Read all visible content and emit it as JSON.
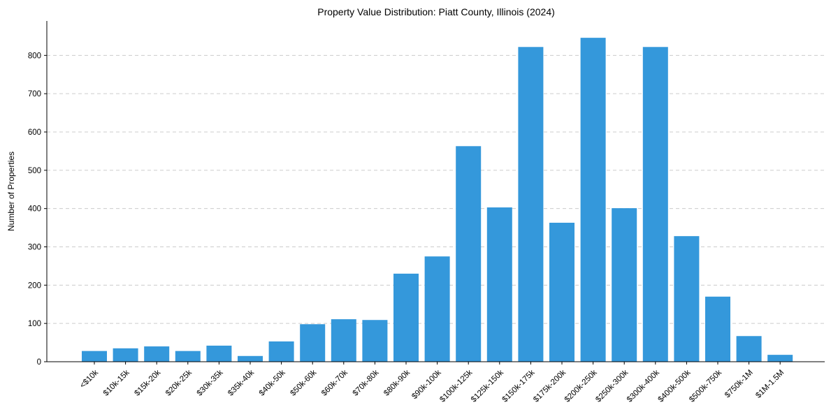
{
  "chart_data": {
    "type": "bar",
    "title": "Property Value Distribution: Piatt County, Illinois (2024)",
    "xlabel": "",
    "ylabel": "Number of Properties",
    "ylim": [
      0,
      890
    ],
    "yticks": [
      0,
      100,
      200,
      300,
      400,
      500,
      600,
      700,
      800
    ],
    "grid": "y-dashed",
    "bar_color": "#3498db",
    "categories": [
      "<$10k",
      "$10k-15k",
      "$15k-20k",
      "$20k-25k",
      "$30k-35k",
      "$35k-40k",
      "$40k-50k",
      "$50k-60k",
      "$60k-70k",
      "$70k-80k",
      "$80k-90k",
      "$90k-100k",
      "$100k-125k",
      "$125k-150k",
      "$150k-175k",
      "$175k-200k",
      "$200k-250k",
      "$250k-300k",
      "$300k-400k",
      "$400k-500k",
      "$500k-750k",
      "$750k-1M",
      "$1M-1.5M"
    ],
    "values": [
      28,
      35,
      40,
      28,
      42,
      15,
      53,
      98,
      111,
      109,
      230,
      275,
      563,
      403,
      822,
      363,
      846,
      401,
      822,
      328,
      170,
      67,
      18
    ]
  }
}
